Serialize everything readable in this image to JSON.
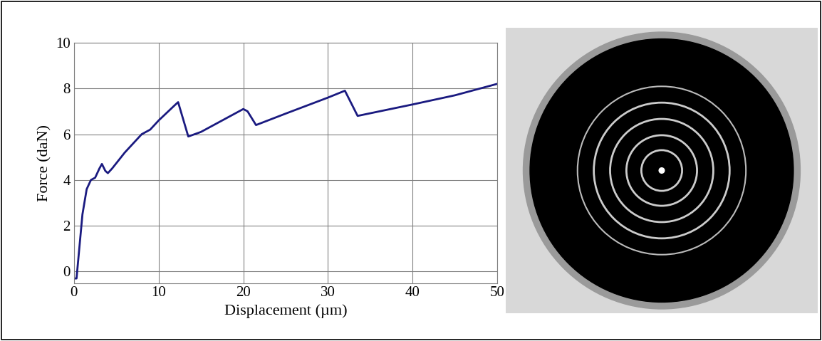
{
  "chart_data": {
    "type": "line",
    "x_label": "Displacement (µm)",
    "y_label": "Force (daN)",
    "color": "#1a1a80",
    "x": [
      0,
      0.3,
      0.5,
      1,
      1.5,
      2,
      2.5,
      3,
      3.3,
      3.7,
      4,
      4.5,
      6,
      8,
      9,
      10,
      12,
      12.3,
      13.5,
      15,
      18,
      20,
      20.5,
      21.5,
      25,
      30,
      32,
      33.5,
      40,
      45,
      50
    ],
    "values": [
      -0.3,
      -0.3,
      0.5,
      2.5,
      3.6,
      4.0,
      4.1,
      4.5,
      4.7,
      4.4,
      4.3,
      4.5,
      5.2,
      6.0,
      6.2,
      6.6,
      7.3,
      7.4,
      5.9,
      6.1,
      6.7,
      7.1,
      7.0,
      6.4,
      6.9,
      7.6,
      7.9,
      6.8,
      7.3,
      7.7,
      8.2
    ],
    "xlim": [
      0,
      50
    ],
    "xticks": [
      0,
      10,
      20,
      30,
      40,
      50
    ],
    "ylim": [
      -0.5,
      10
    ],
    "yticks": [
      0,
      2,
      4,
      6,
      8,
      10
    ],
    "grid": true
  }
}
